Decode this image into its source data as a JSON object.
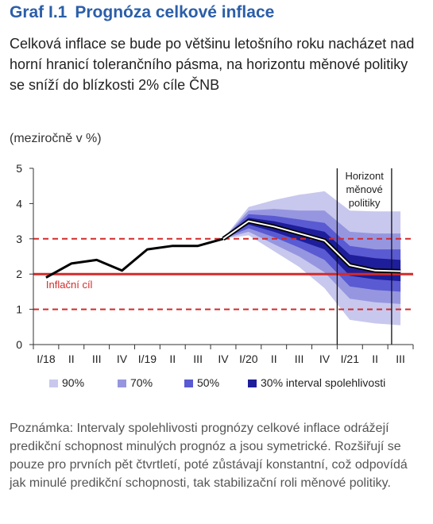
{
  "header": {
    "graph_number": "Graf I.1",
    "title": "Prognóza celkové inflace",
    "subtitle": "Celková inflace se bude po většinu letošního roku nacházet nad horní hranicí tolerančního pásma, na horizontu měnové politiky se sníží do blízkosti 2% cíle ČNB",
    "unit": "(meziročně v %)"
  },
  "chart_data": {
    "type": "area",
    "categories": [
      "I/18",
      "II",
      "III",
      "IV",
      "I/19",
      "II",
      "III",
      "IV",
      "I/20",
      "II",
      "III",
      "IV",
      "I/21",
      "II",
      "III"
    ],
    "ylim": [
      0,
      5
    ],
    "yticks": [
      "0",
      "1",
      "2",
      "3",
      "4",
      "5"
    ],
    "actual": {
      "x": [
        0,
        1,
        2,
        3,
        4,
        5,
        6,
        7
      ],
      "y": [
        1.9,
        2.3,
        2.4,
        2.1,
        2.7,
        2.8,
        2.8,
        3.0
      ]
    },
    "forecast": {
      "x": [
        7,
        8,
        9,
        10,
        11,
        12,
        13,
        14
      ],
      "y": [
        3.0,
        3.5,
        3.35,
        3.15,
        2.95,
        2.25,
        2.1,
        2.08
      ]
    },
    "bands": [
      {
        "name": "90%",
        "color": "#c8c8ee",
        "lower": [
          3.0,
          3.1,
          2.65,
          2.2,
          1.6,
          0.7,
          0.6,
          0.55
        ],
        "upper": [
          3.0,
          3.9,
          4.1,
          4.25,
          4.35,
          3.8,
          3.78,
          3.78
        ]
      },
      {
        "name": "70%",
        "color": "#9696e0",
        "lower": [
          3.0,
          3.2,
          2.85,
          2.5,
          2.05,
          1.3,
          1.2,
          1.15
        ],
        "upper": [
          3.0,
          3.8,
          3.85,
          3.8,
          3.8,
          3.2,
          3.15,
          3.15
        ]
      },
      {
        "name": "50%",
        "color": "#5a5ad2",
        "lower": [
          3.0,
          3.3,
          3.05,
          2.75,
          2.4,
          1.65,
          1.55,
          1.5
        ],
        "upper": [
          3.0,
          3.7,
          3.65,
          3.55,
          3.45,
          2.8,
          2.7,
          2.7
        ]
      },
      {
        "name": "30% interval spolehlivosti",
        "color": "#1e1e9a",
        "lower": [
          3.0,
          3.4,
          3.2,
          2.95,
          2.7,
          1.95,
          1.85,
          1.8
        ],
        "upper": [
          3.0,
          3.6,
          3.5,
          3.35,
          3.2,
          2.55,
          2.45,
          2.4
        ]
      }
    ],
    "target": {
      "value": 2,
      "label": "Inflační cíl",
      "color": "#d42a2a"
    },
    "tolerance": {
      "lower": 1,
      "upper": 3,
      "color": "#d42a2a"
    },
    "vertical_lines": [
      11.5,
      13.65
    ],
    "horizon_label": [
      "Horizont",
      "měnové",
      "politiky"
    ],
    "legend": [
      "90%",
      "70%",
      "50%",
      "30% interval spolehlivosti"
    ]
  },
  "note": "Poznámka: Intervaly spolehlivosti prognózy celkové inflace odrážejí predikční schopnost minulých prognóz a jsou symetrické. Rozšiřují se pouze pro prvních pět čtvrtletí, poté zůstávají konstantní, což odpovídá jak minulé predikční schopnosti, tak stabilizační roli měnové politiky."
}
